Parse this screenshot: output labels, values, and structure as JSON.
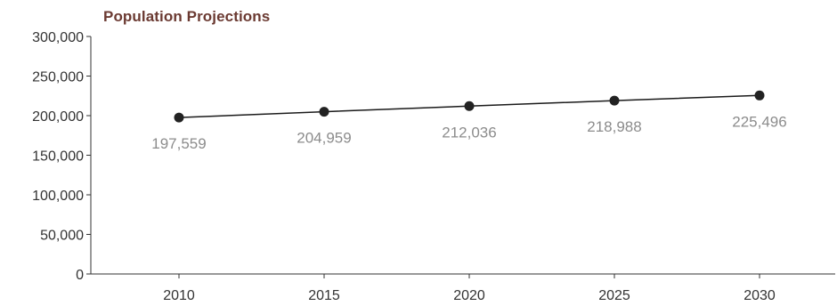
{
  "chart_data": {
    "type": "line",
    "title": "Population Projections",
    "xlabel": "",
    "ylabel": "",
    "categories": [
      "2010",
      "2015",
      "2020",
      "2025",
      "2030"
    ],
    "series": [
      {
        "values": [
          197559,
          204959,
          212036,
          218988,
          225496
        ]
      }
    ],
    "data_labels": [
      "197,559",
      "204,959",
      "212,036",
      "218,988",
      "225,496"
    ],
    "ylim": [
      0,
      300000
    ],
    "yticks": [
      0,
      50000,
      100000,
      150000,
      200000,
      250000,
      300000
    ],
    "ytick_labels": [
      "0",
      "50,000",
      "100,000",
      "150,000",
      "200,000",
      "250,000",
      "300,000"
    ],
    "grid": false,
    "legend": "none",
    "colors": {
      "title": "#6b3a32",
      "line": "#1a1a1a",
      "marker": "#222222",
      "axis": "#333333",
      "data_label": "#8c8c8c"
    }
  }
}
